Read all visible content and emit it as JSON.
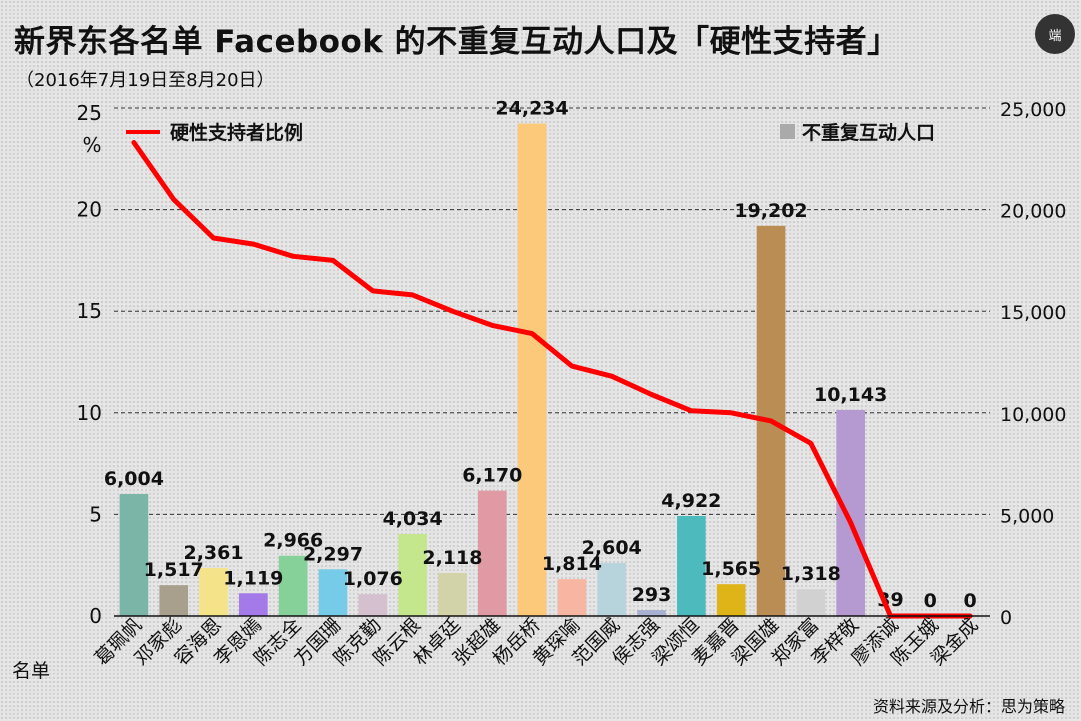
{
  "title": "新界东各名单 Facebook 的不重复互动人口及「硬性支持者」",
  "subtitle": "（2016年7月19日至8月20日）",
  "logo_text": "端",
  "source": "资料来源及分析：思为策略",
  "chart_data": {
    "type": "bar",
    "xlabel": "名单",
    "y_left_unit": "%",
    "ylim_left": [
      0,
      25
    ],
    "yticks_left": [
      "0",
      "5",
      "10",
      "15",
      "20",
      "25"
    ],
    "ylim_right": [
      0,
      25000
    ],
    "yticks_right": [
      "0",
      "5,000",
      "10,000",
      "15,000",
      "20,000",
      "25,000"
    ],
    "grid": true,
    "categories": [
      "葛珮帆",
      "邓家彪",
      "容海恩",
      "李恩嫣",
      "陈志全",
      "方国珊",
      "陈克勤",
      "陈云根",
      "林卓廷",
      "张超雄",
      "杨岳桥",
      "黄琛喻",
      "范国威",
      "侯志强",
      "梁颂恒",
      "麦嘉晋",
      "梁国雄",
      "郑家富",
      "李梓敬",
      "廖添诚",
      "陈玉娥",
      "梁金成"
    ],
    "series": [
      {
        "name": "不重复互动人口",
        "type": "bar",
        "axis": "right",
        "values": [
          6004,
          1517,
          2361,
          1119,
          2966,
          2297,
          1076,
          4034,
          2118,
          6170,
          24234,
          1814,
          2604,
          293,
          4922,
          1565,
          19202,
          1318,
          10143,
          39,
          0,
          0
        ],
        "labels": [
          "6,004",
          "1,517",
          "2,361",
          "1,119",
          "2,966",
          "2,297",
          "1,076",
          "4,034",
          "2,118",
          "6,170",
          "24,234",
          "1,814",
          "2,604",
          "293",
          "4,922",
          "1,565",
          "19,202",
          "1,318",
          "10,143",
          "39",
          "0",
          "0"
        ],
        "colors": [
          "#7bb5a8",
          "#a89f8c",
          "#f5e38a",
          "#a37ae8",
          "#86d09a",
          "#76cbe8",
          "#d5c0cf",
          "#c4e78e",
          "#d2d3a8",
          "#e09aa3",
          "#fcc87a",
          "#f7b6a1",
          "#b7d3dc",
          "#a8b1d1",
          "#4dbbbd",
          "#dfb419",
          "#b98d53",
          "#d1d1d1",
          "#b59ad1",
          "#e5e5e5",
          "#e5e5e5",
          "#e5e5e5"
        ]
      },
      {
        "name": "硬性支持者比例",
        "type": "line",
        "axis": "left",
        "color": "#ff0000",
        "values": [
          23.3,
          20.5,
          18.6,
          18.3,
          17.7,
          17.5,
          16.0,
          15.8,
          15.0,
          14.3,
          13.9,
          12.3,
          11.8,
          10.9,
          10.1,
          10.0,
          9.6,
          8.5,
          4.6,
          0,
          0,
          0
        ]
      }
    ],
    "legend_line_label": "硬性支持者比例",
    "legend_bar_label": "不重复互动人口",
    "legend_bar_swatch": "#aaaaaa",
    "line_legend_position": "top-left",
    "bar_legend_position": "top-right"
  }
}
